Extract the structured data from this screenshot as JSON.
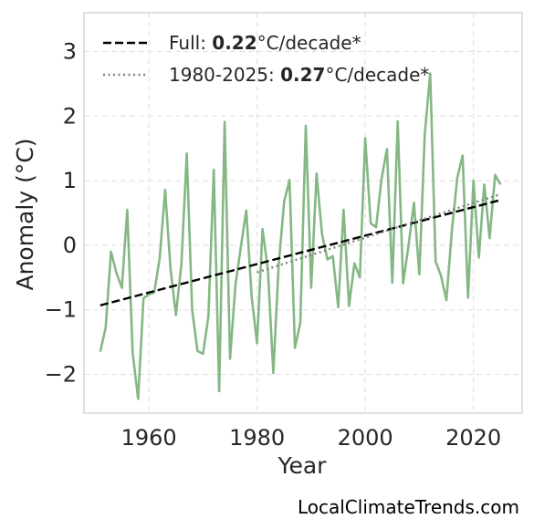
{
  "chart_data": {
    "type": "line",
    "title": "",
    "xlabel": "Year",
    "ylabel": "Anomaly (°C)",
    "xlim": [
      1948,
      2029
    ],
    "ylim": [
      -2.6,
      3.6
    ],
    "xticks": [
      1960,
      1980,
      2000,
      2020
    ],
    "yticks": [
      3,
      2,
      1,
      0,
      -1,
      -2
    ],
    "ytick_labels": [
      "3",
      "2",
      "1",
      "0",
      "−1",
      "−2"
    ],
    "grid": true,
    "legend_position": "top-left",
    "series": [
      {
        "style": "solid",
        "color": "#85b784",
        "x": [
          1951,
          1952,
          1953,
          1954,
          1955,
          1956,
          1957,
          1958,
          1959,
          1960,
          1961,
          1962,
          1963,
          1964,
          1965,
          1966,
          1967,
          1968,
          1969,
          1970,
          1971,
          1972,
          1973,
          1974,
          1975,
          1976,
          1977,
          1978,
          1979,
          1980,
          1981,
          1982,
          1983,
          1984,
          1985,
          1986,
          1987,
          1988,
          1989,
          1990,
          1991,
          1992,
          1993,
          1994,
          1995,
          1996,
          1997,
          1998,
          1999,
          2000,
          2001,
          2002,
          2003,
          2004,
          2005,
          2006,
          2007,
          2008,
          2009,
          2010,
          2011,
          2012,
          2013,
          2014,
          2015,
          2016,
          2017,
          2018,
          2019,
          2020,
          2021,
          2022,
          2023,
          2024,
          2025
        ],
        "values": [
          -1.65,
          -1.28,
          -0.1,
          -0.43,
          -0.66,
          0.55,
          -1.66,
          -2.38,
          -0.82,
          -0.76,
          -0.73,
          -0.19,
          0.86,
          -0.36,
          -1.08,
          -0.3,
          1.42,
          -1.0,
          -1.64,
          -1.68,
          -1.1,
          1.17,
          -2.26,
          1.91,
          -1.76,
          -0.62,
          -0.02,
          0.54,
          -0.8,
          -1.52,
          0.25,
          -0.38,
          -1.98,
          -0.3,
          0.68,
          1.01,
          -1.59,
          -1.2,
          1.85,
          -0.66,
          1.11,
          0.18,
          -0.22,
          -0.17,
          -0.96,
          0.55,
          -0.94,
          -0.28,
          -0.5,
          1.66,
          0.34,
          0.28,
          1.02,
          1.49,
          -0.58,
          1.92,
          -0.59,
          0.0,
          0.66,
          -0.45,
          1.71,
          2.66,
          -0.25,
          -0.47,
          -0.85,
          0.22,
          1.04,
          1.39,
          -0.81,
          1.0,
          -0.19,
          0.94,
          0.11,
          1.09,
          0.94
        ]
      },
      {
        "name": "Full",
        "style": "dashed",
        "color": "#000000",
        "x": [
          1951,
          2025
        ],
        "values": [
          -0.93,
          0.7
        ],
        "rate": "0.22",
        "unit": "°C/decade*"
      },
      {
        "name": "1980-2025",
        "style": "dotted",
        "color": "#808080",
        "x": [
          1980,
          2025
        ],
        "values": [
          -0.42,
          0.79
        ],
        "rate": "0.27",
        "unit": "°C/decade*"
      }
    ]
  },
  "legend": {
    "full_label": "Full: ",
    "full_rate": "0.22",
    "full_unit": "°C/decade*",
    "recent_label": "1980-2025: ",
    "recent_rate": "0.27",
    "recent_unit": "°C/decade*"
  },
  "watermark": "LocalClimateTrends.com"
}
